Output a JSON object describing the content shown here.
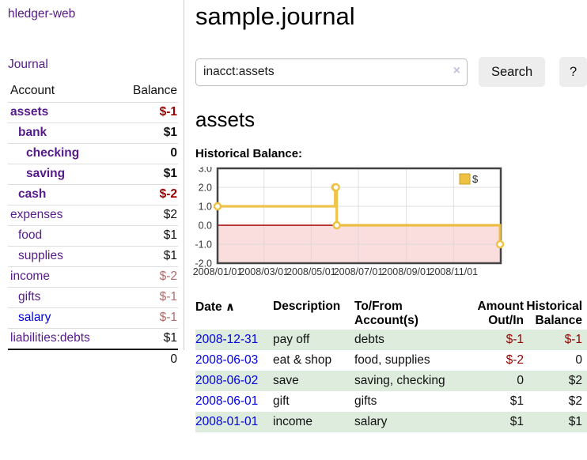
{
  "app": {
    "brand": "hledger-web",
    "nav_journal": "Journal"
  },
  "sidebar": {
    "headers": {
      "account": "Account",
      "balance": "Balance"
    },
    "accounts": [
      {
        "name": "assets",
        "depth": 1,
        "bold": true,
        "balance": "$-1",
        "balance_style": "neg-strong"
      },
      {
        "name": "bank",
        "depth": 2,
        "bold": true,
        "balance": "$1",
        "balance_style": "strong"
      },
      {
        "name": "checking",
        "depth": 3,
        "bold": true,
        "balance": "0",
        "balance_style": "strong"
      },
      {
        "name": "saving",
        "depth": 3,
        "bold": true,
        "balance": "$1",
        "balance_style": "strong"
      },
      {
        "name": "cash",
        "depth": 2,
        "bold": true,
        "balance": "$-2",
        "balance_style": "neg-strong"
      },
      {
        "name": "expenses",
        "depth": 1,
        "bold": false,
        "balance": "$2",
        "balance_style": "plain"
      },
      {
        "name": "food",
        "depth": 2,
        "bold": false,
        "balance": "$1",
        "balance_style": "plain"
      },
      {
        "name": "supplies",
        "depth": 2,
        "bold": false,
        "balance": "$1",
        "balance_style": "plain"
      },
      {
        "name": "income",
        "depth": 1,
        "bold": false,
        "balance": "$-2",
        "balance_style": "neg-dim"
      },
      {
        "name": "gifts",
        "depth": 2,
        "bold": false,
        "balance": "$-1",
        "balance_style": "neg-dim"
      },
      {
        "name": "salary",
        "depth": 2,
        "bold": false,
        "link_style": "unvisited",
        "balance": "$-1",
        "balance_style": "neg-dim"
      },
      {
        "name": "liabilities:debts",
        "depth": 1,
        "bold": false,
        "balance": "$1",
        "balance_style": "plain"
      }
    ],
    "total": "0"
  },
  "header": {
    "title": "sample.journal"
  },
  "search": {
    "value": "inacct:assets",
    "clear_icon": "×",
    "button_label": "Search",
    "help_label": "?"
  },
  "account_page": {
    "title": "assets",
    "chart_label": "Historical Balance:"
  },
  "chart_data": {
    "type": "line",
    "step": true,
    "series": [
      {
        "name": "$",
        "color": "#edc240",
        "points": [
          [
            "2008-01-01",
            1
          ],
          [
            "2008-06-01",
            2
          ],
          [
            "2008-06-02",
            2
          ],
          [
            "2008-06-03",
            0
          ],
          [
            "2008-12-31",
            -1
          ]
        ]
      }
    ],
    "x_range": [
      "2008-01-01",
      "2009-01-01"
    ],
    "ylim": [
      -2,
      3
    ],
    "y_ticks": [
      "3.0",
      "2.0",
      "1.0",
      "0.0",
      "-1.0",
      "-2.0"
    ],
    "x_ticks": [
      "2008/01/01",
      "2008/03/01",
      "2008/05/01",
      "2008/07/01",
      "2008/09/01",
      "2008/11/01"
    ],
    "grid": true,
    "legend": "$",
    "legend_position": "top-right",
    "negative_region_color": "#fadddd",
    "zero_line_color": "#a40000",
    "border_color": "#444444",
    "grid_color": "#d8d8d8"
  },
  "register": {
    "headers": [
      "Date",
      "Description",
      "To/From Account(s)",
      "Amount Out/In",
      "Historical Balance"
    ],
    "sort_icon": "∧",
    "rows": [
      {
        "date": "2008-12-31",
        "description": "pay off",
        "accounts": "debts",
        "amount": "$-1",
        "amount_neg": true,
        "balance": "$-1",
        "balance_neg": true,
        "shaded": true
      },
      {
        "date": "2008-06-03",
        "description": "eat & shop",
        "accounts": "food, supplies",
        "amount": "$-2",
        "amount_neg": true,
        "balance": "0",
        "balance_neg": false,
        "shaded": false
      },
      {
        "date": "2008-06-02",
        "description": "save",
        "accounts": "saving, checking",
        "amount": "0",
        "amount_neg": false,
        "balance": "$2",
        "balance_neg": false,
        "shaded": true
      },
      {
        "date": "2008-06-01",
        "description": "gift",
        "accounts": "gifts",
        "amount": "$1",
        "amount_neg": false,
        "balance": "$2",
        "balance_neg": false,
        "shaded": false
      },
      {
        "date": "2008-01-01",
        "description": "income",
        "accounts": "salary",
        "amount": "$1",
        "amount_neg": false,
        "balance": "$1",
        "balance_neg": false,
        "shaded": true
      }
    ]
  },
  "colors": {
    "link_purple": "#551a8b",
    "link_blue": "#0000e0",
    "negative_strong": "#950000",
    "negative_dim": "#b36b6b",
    "row_shade_green": "#ddecdc",
    "button_gray": "#ededed"
  }
}
